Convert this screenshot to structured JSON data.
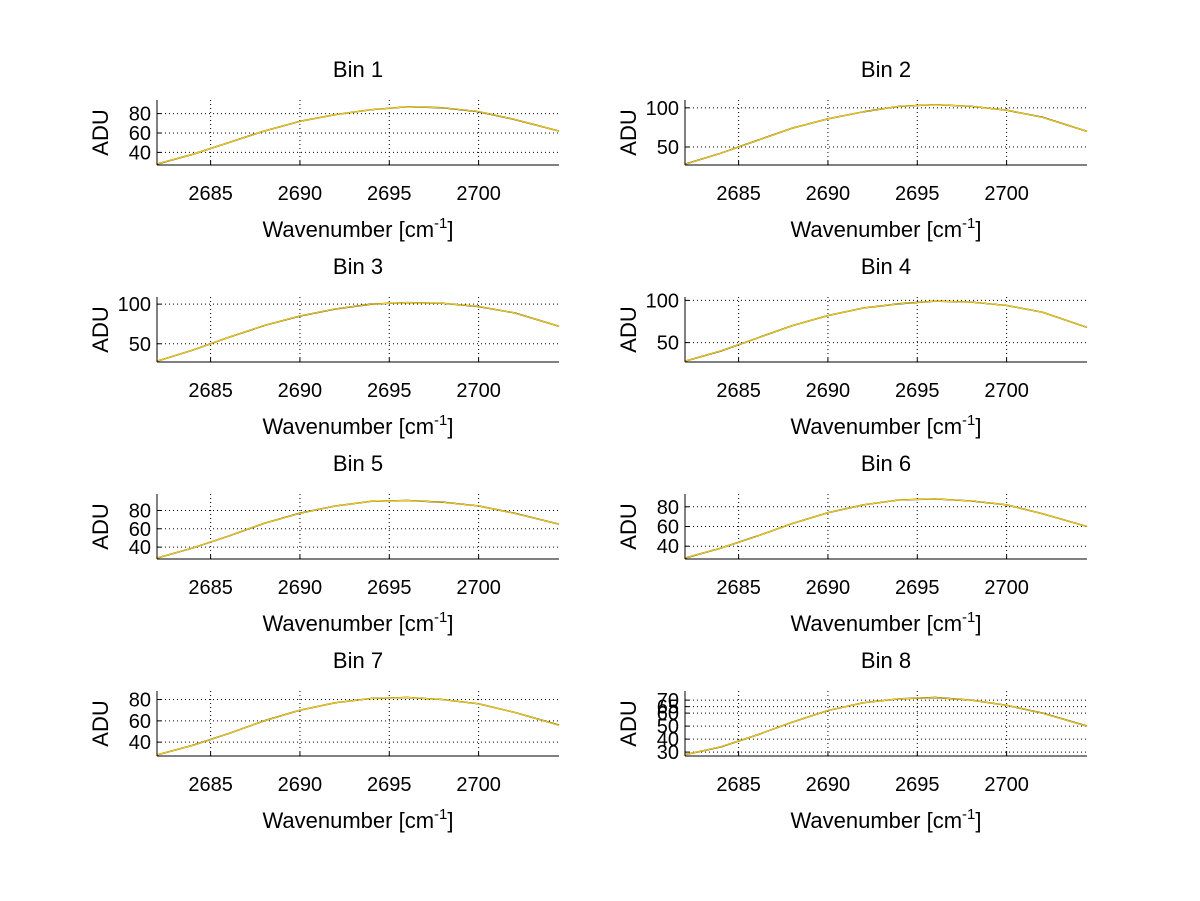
{
  "chart_data": [
    {
      "type": "line",
      "title": "Bin 1",
      "xlabel": "Wavenumber [cm",
      "xlabel_sup": "-1",
      "xlabel_end": "]",
      "ylabel": "ADU",
      "xlim": [
        2682,
        2704.5
      ],
      "ylim": [
        27,
        94
      ],
      "xticks": [
        2685,
        2690,
        2695,
        2700
      ],
      "yticks": [
        40,
        60,
        80
      ],
      "grid": true,
      "series": [
        {
          "color": "#000000",
          "x": [
            2682,
            2684,
            2686,
            2688,
            2690,
            2692,
            2694,
            2696,
            2698,
            2700,
            2702,
            2704.5
          ],
          "values": [
            28,
            38,
            50,
            62,
            72,
            79,
            84,
            87,
            86,
            82,
            74,
            62
          ]
        },
        {
          "color": "#FFD400",
          "x": [
            2682,
            2684,
            2686,
            2688,
            2690,
            2692,
            2694,
            2696,
            2698,
            2700,
            2702,
            2704.5
          ],
          "values": [
            28,
            38,
            50,
            62,
            72,
            79,
            84,
            87,
            86,
            82,
            74,
            62
          ]
        }
      ]
    },
    {
      "type": "line",
      "title": "Bin 2",
      "xlabel": "Wavenumber [cm",
      "xlabel_sup": "-1",
      "xlabel_end": "]",
      "ylabel": "ADU",
      "xlim": [
        2682,
        2704.5
      ],
      "ylim": [
        27,
        110
      ],
      "xticks": [
        2685,
        2690,
        2695,
        2700
      ],
      "yticks": [
        50,
        100
      ],
      "grid": true,
      "series": [
        {
          "color": "#000000",
          "x": [
            2682,
            2684,
            2686,
            2688,
            2690,
            2692,
            2694,
            2696,
            2698,
            2700,
            2702,
            2704.5
          ],
          "values": [
            28,
            42,
            58,
            74,
            86,
            95,
            102,
            104,
            102,
            97,
            88,
            70
          ]
        },
        {
          "color": "#FFD400",
          "x": [
            2682,
            2684,
            2686,
            2688,
            2690,
            2692,
            2694,
            2696,
            2698,
            2700,
            2702,
            2704.5
          ],
          "values": [
            28,
            42,
            58,
            74,
            86,
            95,
            102,
            104,
            102,
            97,
            88,
            70
          ]
        }
      ]
    },
    {
      "type": "line",
      "title": "Bin 3",
      "xlabel": "Wavenumber [cm",
      "xlabel_sup": "-1",
      "xlabel_end": "]",
      "ylabel": "ADU",
      "xlim": [
        2682,
        2704.5
      ],
      "ylim": [
        27,
        109
      ],
      "xticks": [
        2685,
        2690,
        2695,
        2700
      ],
      "yticks": [
        50,
        100
      ],
      "grid": true,
      "series": [
        {
          "color": "#000000",
          "x": [
            2682,
            2684,
            2686,
            2688,
            2690,
            2692,
            2694,
            2696,
            2698,
            2700,
            2702,
            2704.5
          ],
          "values": [
            28,
            42,
            58,
            73,
            85,
            94,
            100,
            102,
            101,
            97,
            89,
            72
          ]
        },
        {
          "color": "#FFD400",
          "x": [
            2682,
            2684,
            2686,
            2688,
            2690,
            2692,
            2694,
            2696,
            2698,
            2700,
            2702,
            2704.5
          ],
          "values": [
            28,
            42,
            58,
            73,
            85,
            94,
            100,
            102,
            101,
            97,
            89,
            72
          ]
        }
      ]
    },
    {
      "type": "line",
      "title": "Bin 4",
      "xlabel": "Wavenumber [cm",
      "xlabel_sup": "-1",
      "xlabel_end": "]",
      "ylabel": "ADU",
      "xlim": [
        2682,
        2704.5
      ],
      "ylim": [
        27,
        104
      ],
      "xticks": [
        2685,
        2690,
        2695,
        2700
      ],
      "yticks": [
        50,
        100
      ],
      "grid": true,
      "series": [
        {
          "color": "#000000",
          "x": [
            2682,
            2684,
            2686,
            2688,
            2690,
            2692,
            2694,
            2696,
            2698,
            2700,
            2702,
            2704.5
          ],
          "values": [
            28,
            40,
            55,
            70,
            82,
            91,
            96,
            99,
            98,
            94,
            86,
            68
          ]
        },
        {
          "color": "#FFD400",
          "x": [
            2682,
            2684,
            2686,
            2688,
            2690,
            2692,
            2694,
            2696,
            2698,
            2700,
            2702,
            2704.5
          ],
          "values": [
            28,
            40,
            55,
            70,
            82,
            91,
            96,
            99,
            98,
            94,
            86,
            68
          ]
        }
      ]
    },
    {
      "type": "line",
      "title": "Bin 5",
      "xlabel": "Wavenumber [cm",
      "xlabel_sup": "-1",
      "xlabel_end": "]",
      "ylabel": "ADU",
      "xlim": [
        2682,
        2704.5
      ],
      "ylim": [
        27,
        98
      ],
      "xticks": [
        2685,
        2690,
        2695,
        2700
      ],
      "yticks": [
        40,
        60,
        80
      ],
      "grid": true,
      "series": [
        {
          "color": "#000000",
          "x": [
            2682,
            2684,
            2686,
            2688,
            2690,
            2692,
            2694,
            2696,
            2698,
            2700,
            2702,
            2704.5
          ],
          "values": [
            28,
            39,
            52,
            66,
            77,
            85,
            90,
            91,
            89,
            85,
            77,
            65
          ]
        },
        {
          "color": "#FFD400",
          "x": [
            2682,
            2684,
            2686,
            2688,
            2690,
            2692,
            2694,
            2696,
            2698,
            2700,
            2702,
            2704.5
          ],
          "values": [
            28,
            39,
            52,
            66,
            77,
            85,
            90,
            91,
            89,
            85,
            77,
            65
          ]
        }
      ]
    },
    {
      "type": "line",
      "title": "Bin 6",
      "xlabel": "Wavenumber [cm",
      "xlabel_sup": "-1",
      "xlabel_end": "]",
      "ylabel": "ADU",
      "xlim": [
        2682,
        2704.5
      ],
      "ylim": [
        27,
        93
      ],
      "xticks": [
        2685,
        2690,
        2695,
        2700
      ],
      "yticks": [
        40,
        60,
        80
      ],
      "grid": true,
      "series": [
        {
          "color": "#000000",
          "x": [
            2682,
            2684,
            2686,
            2688,
            2690,
            2692,
            2694,
            2696,
            2698,
            2700,
            2702,
            2704.5
          ],
          "values": [
            28,
            38,
            50,
            63,
            74,
            82,
            87,
            88,
            86,
            82,
            73,
            60
          ]
        },
        {
          "color": "#FFD400",
          "x": [
            2682,
            2684,
            2686,
            2688,
            2690,
            2692,
            2694,
            2696,
            2698,
            2700,
            2702,
            2704.5
          ],
          "values": [
            28,
            38,
            50,
            63,
            74,
            82,
            87,
            88,
            86,
            82,
            73,
            60
          ]
        }
      ]
    },
    {
      "type": "line",
      "title": "Bin 7",
      "xlabel": "Wavenumber [cm",
      "xlabel_sup": "-1",
      "xlabel_end": "]",
      "ylabel": "ADU",
      "xlim": [
        2682,
        2704.5
      ],
      "ylim": [
        27,
        88
      ],
      "xticks": [
        2685,
        2690,
        2695,
        2700
      ],
      "yticks": [
        40,
        60,
        80
      ],
      "grid": true,
      "series": [
        {
          "color": "#000000",
          "x": [
            2682,
            2684,
            2686,
            2688,
            2690,
            2692,
            2694,
            2696,
            2698,
            2700,
            2702,
            2704.5
          ],
          "values": [
            28,
            37,
            48,
            60,
            70,
            77,
            81,
            82,
            80,
            76,
            68,
            56
          ]
        },
        {
          "color": "#FFD400",
          "x": [
            2682,
            2684,
            2686,
            2688,
            2690,
            2692,
            2694,
            2696,
            2698,
            2700,
            2702,
            2704.5
          ],
          "values": [
            28,
            37,
            48,
            60,
            70,
            77,
            81,
            82,
            80,
            76,
            68,
            56
          ]
        }
      ]
    },
    {
      "type": "line",
      "title": "Bin 8",
      "xlabel": "Wavenumber [cm",
      "xlabel_sup": "-1",
      "xlabel_end": "]",
      "ylabel": "ADU",
      "xlim": [
        2682,
        2704.5
      ],
      "ylim": [
        27,
        77
      ],
      "xticks": [
        2685,
        2690,
        2695,
        2700
      ],
      "yticks": [
        30,
        40,
        50,
        60,
        65,
        70
      ],
      "grid": true,
      "series": [
        {
          "color": "#000000",
          "x": [
            2682,
            2684,
            2686,
            2688,
            2690,
            2692,
            2694,
            2696,
            2698,
            2700,
            2702,
            2704.5
          ],
          "values": [
            28,
            34,
            43,
            53,
            62,
            68,
            71,
            72,
            70,
            66,
            60,
            50
          ]
        },
        {
          "color": "#FFD400",
          "x": [
            2682,
            2684,
            2686,
            2688,
            2690,
            2692,
            2694,
            2696,
            2698,
            2700,
            2702,
            2704.5
          ],
          "values": [
            28,
            34,
            43,
            53,
            62,
            68,
            71,
            72,
            70,
            66,
            60,
            50
          ]
        }
      ]
    }
  ]
}
